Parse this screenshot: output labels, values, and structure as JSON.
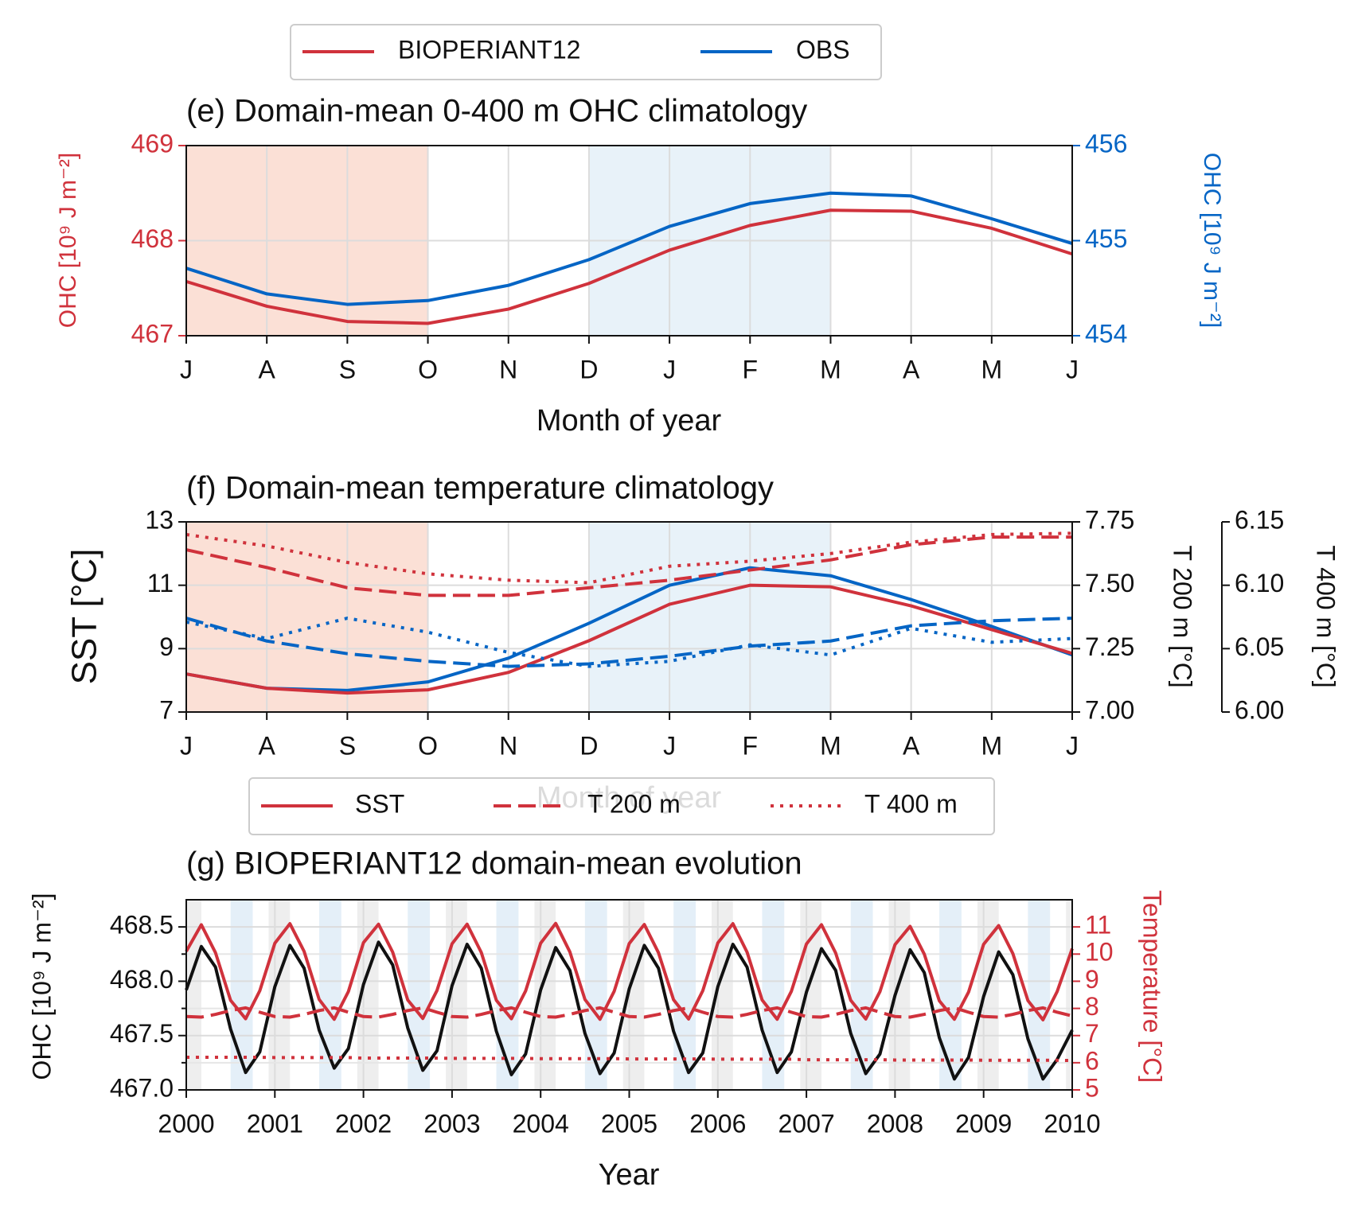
{
  "chart_data": [
    {
      "type": "line",
      "title": "(e) Domain-mean 0-400 m OHC climatology",
      "xlabel": "Month of year",
      "ylabel": "OHC [10⁹ J m⁻²]",
      "y2label": "OHC [10⁹ J m⁻²]",
      "y_color": "#d0323c",
      "y2_color": "#0565c5",
      "categories": [
        "J",
        "A",
        "S",
        "O",
        "N",
        "D",
        "J",
        "F",
        "M",
        "A",
        "M",
        "J"
      ],
      "ylim": [
        467,
        469
      ],
      "yticks": [
        467,
        468,
        469
      ],
      "y2lim": [
        454,
        456
      ],
      "y2ticks": [
        454,
        455,
        456
      ],
      "grid": true,
      "legend": "top",
      "spans": [
        {
          "start": 0,
          "end": 3,
          "color": "#fbe0d6"
        },
        {
          "start": 5,
          "end": 8,
          "color": "#e8f2f9"
        }
      ],
      "series": [
        {
          "name": "BIOPERIANT12",
          "color": "#d0323c",
          "axis": "y",
          "values": [
            467.57,
            467.31,
            467.15,
            467.13,
            467.28,
            467.55,
            467.9,
            468.16,
            468.32,
            468.31,
            468.13,
            467.86
          ]
        },
        {
          "name": "OBS",
          "color": "#0565c5",
          "axis": "y2",
          "values": [
            454.71,
            454.44,
            454.33,
            454.37,
            454.53,
            454.8,
            455.15,
            455.39,
            455.5,
            455.47,
            455.23,
            454.97
          ]
        }
      ]
    },
    {
      "type": "line",
      "title": "(f) Domain-mean temperature climatology",
      "xlabel": "Month of year",
      "ylabel": "SST [°C]",
      "y2label": "T 200 m [°C]",
      "y3label": "T 400 m [°C]",
      "categories": [
        "J",
        "A",
        "S",
        "O",
        "N",
        "D",
        "J",
        "F",
        "M",
        "A",
        "M",
        "J"
      ],
      "ylim": [
        7,
        13
      ],
      "yticks": [
        7,
        9,
        11,
        13
      ],
      "y2lim": [
        7,
        7.75
      ],
      "y2ticks": [
        {
          "value": 7,
          "label": "7.00"
        },
        7.25,
        {
          "value": 7.5,
          "label": "7.50"
        },
        7.75
      ],
      "y3lim": [
        6,
        6.15
      ],
      "y3ticks": [
        {
          "value": 6,
          "label": "6.00"
        },
        6.05,
        {
          "value": 6.1,
          "label": "6.10"
        },
        6.15
      ],
      "grid": true,
      "spans": [
        {
          "start": 0,
          "end": 3,
          "color": "#fbe0d6"
        },
        {
          "start": 5,
          "end": 8,
          "color": "#e8f2f9"
        }
      ],
      "legend": {
        "location": "lower center outside",
        "entries": [
          {
            "label": "SST",
            "style": "solid",
            "color": "#d0323c"
          },
          {
            "label": "T 200 m",
            "style": "dashed",
            "color": "#d0323c"
          },
          {
            "label": "T 400 m",
            "style": "dotted",
            "color": "#d0323c"
          }
        ]
      },
      "series": [
        {
          "color": "#0565c5",
          "style": "solid",
          "axis": "y",
          "values": [
            8.2,
            7.75,
            7.68,
            7.95,
            8.7,
            9.8,
            11.0,
            11.55,
            11.3,
            10.55,
            9.7,
            8.8
          ]
        },
        {
          "color": "#d0323c",
          "style": "solid",
          "axis": "y",
          "values": [
            8.2,
            7.75,
            7.6,
            7.7,
            8.25,
            9.25,
            10.4,
            11.0,
            10.95,
            10.35,
            9.6,
            8.85
          ]
        },
        {
          "color": "#0565c5",
          "style": "dashed",
          "axis": "y2",
          "values": [
            7.37,
            7.28,
            7.23,
            7.2,
            7.18,
            7.19,
            7.22,
            7.26,
            7.28,
            7.34,
            7.36,
            7.37
          ]
        },
        {
          "color": "#d0323c",
          "style": "dashed",
          "axis": "y2",
          "values": [
            7.64,
            7.57,
            7.49,
            7.46,
            7.46,
            7.49,
            7.52,
            7.56,
            7.6,
            7.66,
            7.69,
            7.69
          ]
        },
        {
          "color": "#0565c5",
          "style": "dotted",
          "axis": "y3",
          "values": [
            6.071,
            6.058,
            6.074,
            6.063,
            6.047,
            6.036,
            6.04,
            6.053,
            6.045,
            6.066,
            6.055,
            6.058
          ]
        },
        {
          "color": "#d0323c",
          "style": "dotted",
          "axis": "y3",
          "values": [
            6.14,
            6.131,
            6.118,
            6.109,
            6.104,
            6.102,
            6.115,
            6.119,
            6.125,
            6.134,
            6.14,
            6.141
          ]
        }
      ]
    },
    {
      "type": "line",
      "title": "(g) BIOPERIANT12 domain-mean evolution",
      "xlabel": "Year",
      "ylabel": "OHC [10⁹ J m⁻²]",
      "y2label": "Temperature [°C]",
      "y2_color": "#d0323c",
      "xlim": [
        2000,
        2010
      ],
      "xticks": [
        2000,
        2001,
        2002,
        2003,
        2004,
        2005,
        2006,
        2007,
        2008,
        2009,
        2010
      ],
      "ylim": [
        467,
        468.75
      ],
      "yticks": [
        {
          "value": 467,
          "label": "467.0"
        },
        467.5,
        {
          "value": 468,
          "label": "468.0"
        },
        468.5
      ],
      "yminorticks": [
        467.25,
        467.75,
        468.25
      ],
      "y2lim": [
        5,
        12
      ],
      "y2ticks": [
        5,
        6,
        7,
        8,
        9,
        10,
        11
      ],
      "grid": true,
      "spans": [
        {
          "start": 2000,
          "end": 2000.17,
          "color": "#eeeeee"
        },
        {
          "start": 2000.93,
          "end": 2001.17,
          "color": "#eeeeee"
        },
        {
          "start": 2001.93,
          "end": 2002.17,
          "color": "#eeeeee"
        },
        {
          "start": 2002.93,
          "end": 2003.17,
          "color": "#eeeeee"
        },
        {
          "start": 2003.93,
          "end": 2004.17,
          "color": "#eeeeee"
        },
        {
          "start": 2004.93,
          "end": 2005.17,
          "color": "#eeeeee"
        },
        {
          "start": 2005.93,
          "end": 2006.17,
          "color": "#eeeeee"
        },
        {
          "start": 2006.93,
          "end": 2007.17,
          "color": "#eeeeee"
        },
        {
          "start": 2007.93,
          "end": 2008.17,
          "color": "#eeeeee"
        },
        {
          "start": 2008.93,
          "end": 2009.17,
          "color": "#eeeeee"
        },
        {
          "start": 2009.93,
          "end": 2010,
          "color": "#eeeeee"
        },
        {
          "start": 2000.5,
          "end": 2000.75,
          "color": "#e4eff8"
        },
        {
          "start": 2001.5,
          "end": 2001.75,
          "color": "#e4eff8"
        },
        {
          "start": 2002.5,
          "end": 2002.75,
          "color": "#e4eff8"
        },
        {
          "start": 2003.5,
          "end": 2003.75,
          "color": "#e4eff8"
        },
        {
          "start": 2004.5,
          "end": 2004.75,
          "color": "#e4eff8"
        },
        {
          "start": 2005.5,
          "end": 2005.75,
          "color": "#e4eff8"
        },
        {
          "start": 2006.5,
          "end": 2006.75,
          "color": "#e4eff8"
        },
        {
          "start": 2007.5,
          "end": 2007.75,
          "color": "#e4eff8"
        },
        {
          "start": 2008.5,
          "end": 2008.75,
          "color": "#e4eff8"
        },
        {
          "start": 2009.5,
          "end": 2009.75,
          "color": "#e4eff8"
        }
      ],
      "x": [
        2000,
        2000.17,
        2000.33,
        2000.5,
        2000.67,
        2000.83,
        2001,
        2001.17,
        2001.33,
        2001.5,
        2001.67,
        2001.83,
        2002,
        2002.17,
        2002.33,
        2002.5,
        2002.67,
        2002.83,
        2003,
        2003.17,
        2003.33,
        2003.5,
        2003.67,
        2003.83,
        2004,
        2004.17,
        2004.33,
        2004.5,
        2004.67,
        2004.83,
        2005,
        2005.17,
        2005.33,
        2005.5,
        2005.67,
        2005.83,
        2006,
        2006.17,
        2006.33,
        2006.5,
        2006.67,
        2006.83,
        2007,
        2007.17,
        2007.33,
        2007.5,
        2007.67,
        2007.83,
        2008,
        2008.17,
        2008.33,
        2008.5,
        2008.67,
        2008.83,
        2009,
        2009.17,
        2009.33,
        2009.5,
        2009.67,
        2009.83,
        2010
      ],
      "series": [
        {
          "color": "#111111",
          "style": "solid",
          "axis": "y",
          "values": [
            467.92,
            468.32,
            468.13,
            467.56,
            467.16,
            467.35,
            467.95,
            468.33,
            468.12,
            467.55,
            467.2,
            467.38,
            467.97,
            468.36,
            468.15,
            467.57,
            467.18,
            467.36,
            467.96,
            468.34,
            468.12,
            467.54,
            467.14,
            467.33,
            467.92,
            468.31,
            468.1,
            467.52,
            467.15,
            467.34,
            467.93,
            468.33,
            468.12,
            467.54,
            467.16,
            467.34,
            467.95,
            468.34,
            468.13,
            467.55,
            467.16,
            467.35,
            467.9,
            468.3,
            468.1,
            467.52,
            467.15,
            467.33,
            467.87,
            468.29,
            468.08,
            467.48,
            467.1,
            467.3,
            467.86,
            468.27,
            468.06,
            467.47,
            467.1,
            467.28,
            467.55
          ]
        },
        {
          "color": "#d0323c",
          "style": "solid",
          "axis": "y2",
          "values": [
            10.1,
            11.08,
            10.05,
            8.3,
            7.62,
            8.65,
            10.4,
            11.12,
            10.1,
            8.33,
            7.6,
            8.62,
            10.42,
            11.1,
            10.07,
            8.31,
            7.63,
            8.66,
            10.38,
            11.1,
            10.06,
            8.3,
            7.62,
            8.64,
            10.4,
            11.13,
            10.08,
            8.33,
            7.6,
            8.63,
            10.39,
            11.09,
            10.05,
            8.32,
            7.61,
            8.65,
            10.41,
            11.12,
            10.07,
            8.31,
            7.6,
            8.63,
            10.37,
            11.08,
            10.04,
            8.3,
            7.61,
            8.62,
            10.35,
            11.02,
            10.0,
            8.28,
            7.6,
            8.6,
            10.36,
            11.05,
            10.02,
            8.29,
            7.58,
            8.62,
            10.2
          ]
        },
        {
          "color": "#d0323c",
          "style": "dashed",
          "axis": "y2",
          "values": [
            7.7,
            7.68,
            7.78,
            7.92,
            8.02,
            7.86,
            7.7,
            7.68,
            7.78,
            7.92,
            8.02,
            7.86,
            7.7,
            7.68,
            7.78,
            7.92,
            8.02,
            7.86,
            7.7,
            7.68,
            7.78,
            7.92,
            8.02,
            7.86,
            7.7,
            7.68,
            7.78,
            7.92,
            8.02,
            7.86,
            7.7,
            7.68,
            7.78,
            7.92,
            8.02,
            7.86,
            7.7,
            7.68,
            7.78,
            7.92,
            8.02,
            7.86,
            7.7,
            7.68,
            7.78,
            7.92,
            8.02,
            7.86,
            7.7,
            7.68,
            7.78,
            7.92,
            8.02,
            7.86,
            7.7,
            7.68,
            7.78,
            7.92,
            8.02,
            7.86,
            7.72
          ]
        },
        {
          "color": "#d0323c",
          "style": "dotted",
          "axis": "y2",
          "values": [
            6.2,
            6.2,
            6.2,
            6.2,
            6.2,
            6.2,
            6.19,
            6.19,
            6.19,
            6.19,
            6.19,
            6.19,
            6.17,
            6.17,
            6.17,
            6.17,
            6.17,
            6.17,
            6.16,
            6.16,
            6.16,
            6.16,
            6.16,
            6.16,
            6.15,
            6.15,
            6.15,
            6.15,
            6.15,
            6.15,
            6.14,
            6.14,
            6.14,
            6.14,
            6.14,
            6.14,
            6.13,
            6.13,
            6.13,
            6.13,
            6.13,
            6.13,
            6.11,
            6.11,
            6.11,
            6.11,
            6.11,
            6.11,
            6.1,
            6.1,
            6.1,
            6.1,
            6.1,
            6.1,
            6.09,
            6.09,
            6.09,
            6.09,
            6.09,
            6.09,
            6.08
          ]
        }
      ]
    }
  ]
}
